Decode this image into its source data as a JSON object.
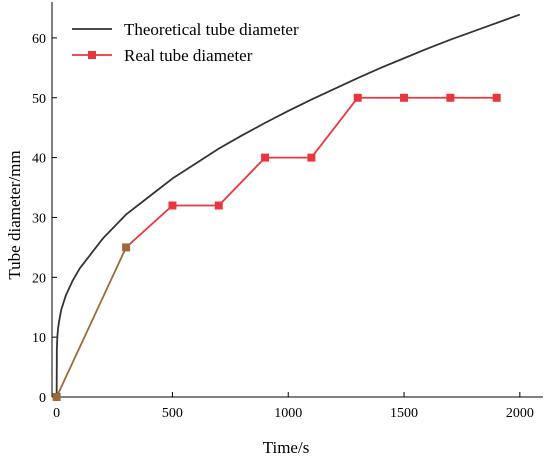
{
  "chart_data": {
    "type": "line",
    "title": "",
    "xlabel": "Time/s",
    "ylabel": "Tube diameter/mm",
    "xlim": [
      -20,
      2100
    ],
    "ylim": [
      0,
      66
    ],
    "x_ticks": [
      0,
      500,
      1000,
      1500,
      2000
    ],
    "y_ticks": [
      0,
      10,
      20,
      30,
      40,
      50,
      60
    ],
    "grid": false,
    "legend_position": "top-left",
    "series": [
      {
        "name": "Theoretical tube diameter",
        "color": "#333333",
        "marker": "none",
        "x": [
          0,
          1,
          3,
          6,
          10,
          20,
          40,
          70,
          100,
          150,
          200,
          300,
          400,
          500,
          600,
          700,
          800,
          900,
          1000,
          1100,
          1200,
          1300,
          1400,
          1500,
          1600,
          1700,
          1800,
          1900,
          2000
        ],
        "y": [
          0,
          8.0,
          10.0,
          11.4,
          12.5,
          14.6,
          17.0,
          19.5,
          21.5,
          24.0,
          26.5,
          30.5,
          33.5,
          36.5,
          39.0,
          41.5,
          43.7,
          45.8,
          47.8,
          49.7,
          51.5,
          53.3,
          55.0,
          56.6,
          58.2,
          59.7,
          61.1,
          62.5,
          63.9
        ]
      },
      {
        "name": "Real tube diameter",
        "color": "#e8363e",
        "marker": "square",
        "x": [
          0,
          300,
          500,
          700,
          900,
          1100,
          1300,
          1500,
          1700,
          1900
        ],
        "y": [
          0,
          25,
          32,
          32,
          40,
          40,
          50,
          50,
          50,
          50
        ]
      }
    ]
  },
  "overlap_color": "#9c6a3a"
}
